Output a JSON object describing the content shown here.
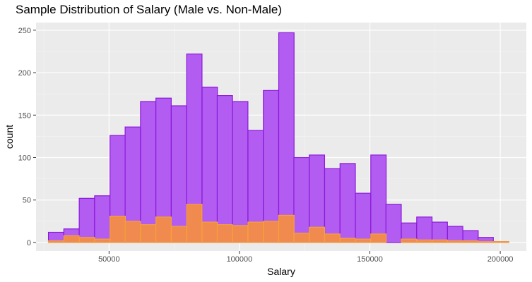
{
  "chart_data": {
    "type": "bar",
    "title": "Sample Distribution of Salary (Male vs. Non-Male)",
    "xlabel": "Salary",
    "ylabel": "count",
    "xlim": [
      22000,
      210000
    ],
    "ylim": [
      -10,
      259
    ],
    "x_ticks": [
      50000,
      100000,
      150000,
      200000
    ],
    "y_ticks": [
      0,
      50,
      100,
      150,
      200,
      250
    ],
    "bin_width": 5880,
    "grid": true,
    "series": [
      {
        "fill": "#b35cf2",
        "stroke": "#8a1ad8",
        "bins": [
          {
            "x": 29700,
            "value": 12
          },
          {
            "x": 35600,
            "value": 16
          },
          {
            "x": 41500,
            "value": 52
          },
          {
            "x": 47400,
            "value": 55
          },
          {
            "x": 53300,
            "value": 126
          },
          {
            "x": 59100,
            "value": 136
          },
          {
            "x": 65000,
            "value": 166
          },
          {
            "x": 70900,
            "value": 170
          },
          {
            "x": 76800,
            "value": 161
          },
          {
            "x": 82700,
            "value": 222
          },
          {
            "x": 88600,
            "value": 183
          },
          {
            "x": 94400,
            "value": 173
          },
          {
            "x": 100300,
            "value": 166
          },
          {
            "x": 106200,
            "value": 132
          },
          {
            "x": 112100,
            "value": 179
          },
          {
            "x": 118000,
            "value": 247
          },
          {
            "x": 123800,
            "value": 100
          },
          {
            "x": 129700,
            "value": 103
          },
          {
            "x": 135600,
            "value": 87
          },
          {
            "x": 141500,
            "value": 93
          },
          {
            "x": 147400,
            "value": 58
          },
          {
            "x": 153300,
            "value": 103
          },
          {
            "x": 159100,
            "value": 45
          },
          {
            "x": 165000,
            "value": 23
          },
          {
            "x": 170900,
            "value": 30
          },
          {
            "x": 176800,
            "value": 24
          },
          {
            "x": 182700,
            "value": 19
          },
          {
            "x": 188600,
            "value": 14
          },
          {
            "x": 194400,
            "value": 6
          },
          {
            "x": 200300,
            "value": 1
          }
        ]
      },
      {
        "fill": "#f08a4f",
        "stroke": "#f5a23a",
        "bins": [
          {
            "x": 29700,
            "value": 2
          },
          {
            "x": 35600,
            "value": 8
          },
          {
            "x": 41500,
            "value": 6
          },
          {
            "x": 47400,
            "value": 4
          },
          {
            "x": 53300,
            "value": 31
          },
          {
            "x": 59100,
            "value": 25
          },
          {
            "x": 65000,
            "value": 21
          },
          {
            "x": 70900,
            "value": 30
          },
          {
            "x": 76800,
            "value": 19
          },
          {
            "x": 82700,
            "value": 45
          },
          {
            "x": 88600,
            "value": 24
          },
          {
            "x": 94400,
            "value": 21
          },
          {
            "x": 100300,
            "value": 20
          },
          {
            "x": 106200,
            "value": 24
          },
          {
            "x": 112100,
            "value": 25
          },
          {
            "x": 118000,
            "value": 32
          },
          {
            "x": 123800,
            "value": 11
          },
          {
            "x": 129700,
            "value": 18
          },
          {
            "x": 135600,
            "value": 10
          },
          {
            "x": 141500,
            "value": 5
          },
          {
            "x": 147400,
            "value": 4
          },
          {
            "x": 153300,
            "value": 10
          },
          {
            "x": 159100,
            "value": 0
          },
          {
            "x": 165000,
            "value": 4
          },
          {
            "x": 170900,
            "value": 3
          },
          {
            "x": 176800,
            "value": 3
          },
          {
            "x": 182700,
            "value": 2
          },
          {
            "x": 188600,
            "value": 2
          },
          {
            "x": 194400,
            "value": 1
          },
          {
            "x": 200300,
            "value": 1
          }
        ]
      }
    ]
  }
}
